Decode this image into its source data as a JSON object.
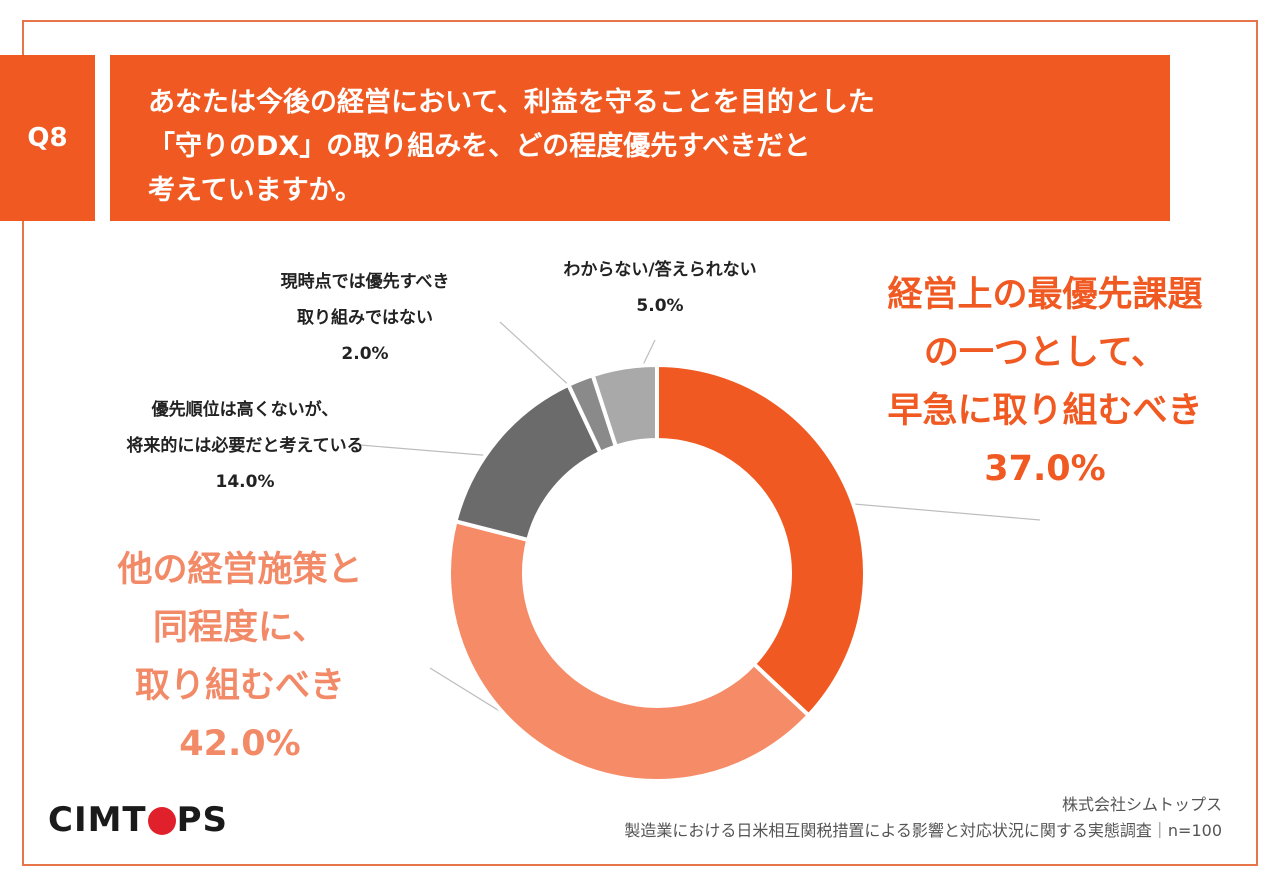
{
  "header": {
    "q_label": "Q8",
    "question_lines": [
      "あなたは今後の経営において、利益を守ることを目的とした",
      "「守りのDX」の取り組みを、どの程度優先すべきだと",
      "考えていますか。"
    ]
  },
  "chart_data": {
    "type": "pie",
    "donut": true,
    "start": "12 o'clock",
    "direction": "clockwise",
    "unit": "%",
    "slices": [
      {
        "label_lines": [
          "経営上の最優先課題",
          "の一つとして、",
          "早急に取り組むべき"
        ],
        "value": 37.0,
        "display": "37.0%",
        "color": "#f05a22"
      },
      {
        "label_lines": [
          "他の経営施策と",
          "同程度に、",
          "取り組むべき"
        ],
        "value": 42.0,
        "display": "42.0%",
        "color": "#f68b68"
      },
      {
        "label_lines": [
          "優先順位は高くないが、",
          "将来的には必要だと考えている"
        ],
        "value": 14.0,
        "display": "14.0%",
        "color": "#6b6b6b"
      },
      {
        "label_lines": [
          "現時点では優先すべき",
          "取り組みではない"
        ],
        "value": 2.0,
        "display": "2.0%",
        "color": "#8a8a8a"
      },
      {
        "label_lines": [
          "わからない/答えられない"
        ],
        "value": 5.0,
        "display": "5.0%",
        "color": "#a9a9a9"
      }
    ]
  },
  "footer": {
    "company": "株式会社シムトップス",
    "survey": "製造業における日米相互関税措置による影響と対応状況に関する実態調査｜n=100"
  },
  "logo": {
    "before": "CIMT",
    "after": "PS",
    "dot_color": "#e0202a"
  }
}
